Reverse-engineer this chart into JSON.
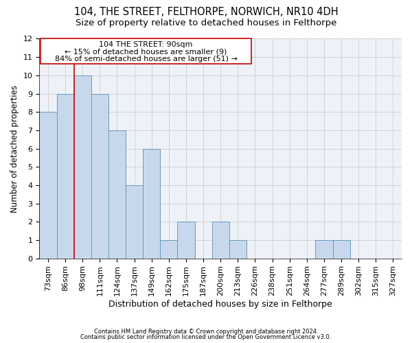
{
  "title1": "104, THE STREET, FELTHORPE, NORWICH, NR10 4DH",
  "title2": "Size of property relative to detached houses in Felthorpe",
  "xlabel": "Distribution of detached houses by size in Felthorpe",
  "ylabel": "Number of detached properties",
  "footer1": "Contains HM Land Registry data © Crown copyright and database right 2024.",
  "footer2": "Contains public sector information licensed under the Open Government Licence v3.0.",
  "bin_labels": [
    "73sqm",
    "86sqm",
    "98sqm",
    "111sqm",
    "124sqm",
    "137sqm",
    "149sqm",
    "162sqm",
    "175sqm",
    "187sqm",
    "200sqm",
    "213sqm",
    "226sqm",
    "238sqm",
    "251sqm",
    "264sqm",
    "277sqm",
    "289sqm",
    "302sqm",
    "315sqm",
    "327sqm"
  ],
  "bar_heights": [
    8,
    9,
    10,
    9,
    7,
    4,
    6,
    1,
    2,
    0,
    2,
    1,
    0,
    0,
    0,
    0,
    1,
    1,
    0,
    0,
    0
  ],
  "bar_color": "#c8d8ec",
  "bar_edgecolor": "#6699bb",
  "bar_linewidth": 0.7,
  "grid_color": "#cccccc",
  "background_color": "#eef2f8",
  "vline_x": 1.5,
  "vline_color": "#cc0000",
  "annotation_line1": "104 THE STREET: 90sqm",
  "annotation_line2": "← 15% of detached houses are smaller (9)",
  "annotation_line3": "84% of semi-detached houses are larger (51) →",
  "annotation_box_color": "#cc0000",
  "annotation_fill": "white",
  "ylim": [
    0,
    12
  ],
  "yticks": [
    0,
    1,
    2,
    3,
    4,
    5,
    6,
    7,
    8,
    9,
    10,
    11,
    12
  ],
  "title1_fontsize": 10.5,
  "title2_fontsize": 9.5,
  "xlabel_fontsize": 9,
  "ylabel_fontsize": 8.5,
  "tick_fontsize": 8,
  "annotation_fontsize": 8,
  "footer_fontsize": 6
}
